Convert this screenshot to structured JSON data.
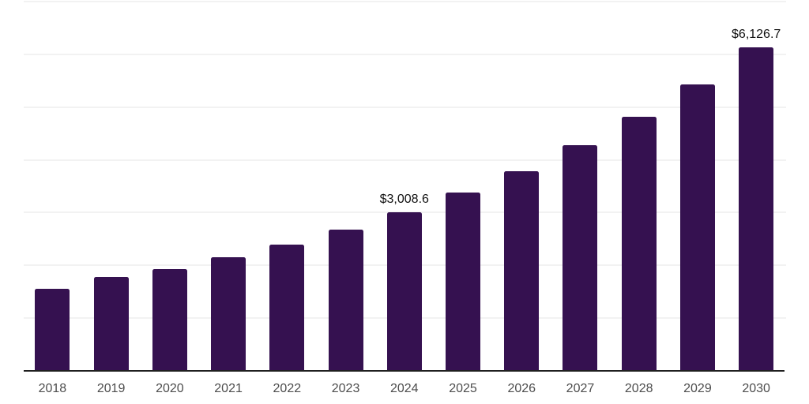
{
  "chart_data": {
    "type": "bar",
    "title": "",
    "xlabel": "",
    "ylabel": "",
    "categories": [
      "2018",
      "2019",
      "2020",
      "2021",
      "2022",
      "2023",
      "2024",
      "2025",
      "2026",
      "2027",
      "2028",
      "2029",
      "2030"
    ],
    "values": [
      1555,
      1780,
      1930,
      2155,
      2400,
      2675,
      3008.6,
      3380,
      3785,
      4280,
      4815,
      5425,
      6126.7
    ],
    "data_labels": [
      {
        "category": "2024",
        "text": "$3,008.6"
      },
      {
        "category": "2030",
        "text": "$6,126.7"
      }
    ],
    "ylim": [
      0,
      7000
    ],
    "grid_interval": 1000,
    "grid": "horizontal",
    "legend": "none",
    "y_axis_labels_visible": false,
    "colors": {
      "bar": "#351150",
      "gridline": "#f2f2f2",
      "axis_line": "#1f1f1f",
      "tick_label": "#4d4d4d",
      "data_label": "#111111",
      "background": "#ffffff"
    }
  }
}
